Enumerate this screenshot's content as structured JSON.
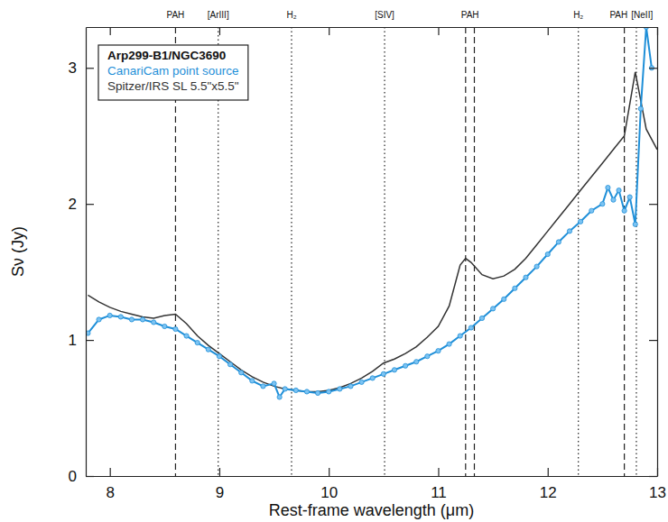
{
  "chart_data": {
    "type": "line",
    "xlabel": "Rest-frame wavelength (μm)",
    "ylabel": "Sν (Jy)",
    "legend_title": "Arp299-B1/NGC3690",
    "legend": "upper left",
    "xlim": [
      7.78,
      13.0
    ],
    "xticks": [
      8,
      9,
      10,
      11,
      12,
      13
    ],
    "ylim": [
      0,
      3.3
    ],
    "yticks": [
      0,
      1,
      2,
      3
    ],
    "annotations": [
      {
        "label": "PAH",
        "x": [
          8.6
        ],
        "line_style": "dashed"
      },
      {
        "label": "[ArIII]",
        "x": [
          8.99
        ],
        "line_style": "dotted"
      },
      {
        "label": "H₂",
        "x": [
          9.66
        ],
        "line_style": "dotted"
      },
      {
        "label": "[SIV]",
        "x": [
          10.51
        ],
        "line_style": "dotted"
      },
      {
        "label": "PAH",
        "x": [
          11.25,
          11.33
        ],
        "line_style": "dashed"
      },
      {
        "label": "H₂",
        "x": [
          12.28
        ],
        "line_style": "dotted"
      },
      {
        "label": "PAH",
        "x": [
          12.7
        ],
        "line_style": "dashed"
      },
      {
        "label": "[NeII]",
        "x": [
          12.81
        ],
        "line_style": "dotted"
      }
    ],
    "series": [
      {
        "name": "CanariCam point source",
        "color": "#1f8fd8",
        "marker": "circle",
        "line_style": "solid",
        "x": [
          7.8,
          7.9,
          8.0,
          8.1,
          8.2,
          8.3,
          8.4,
          8.5,
          8.6,
          8.7,
          8.8,
          8.9,
          9.0,
          9.1,
          9.2,
          9.3,
          9.4,
          9.5,
          9.55,
          9.6,
          9.7,
          9.8,
          9.9,
          10.0,
          10.1,
          10.2,
          10.3,
          10.4,
          10.5,
          10.6,
          10.7,
          10.8,
          10.9,
          11.0,
          11.1,
          11.2,
          11.3,
          11.4,
          11.5,
          11.6,
          11.7,
          11.8,
          11.9,
          12.0,
          12.1,
          12.2,
          12.3,
          12.4,
          12.5,
          12.55,
          12.6,
          12.65,
          12.7,
          12.75,
          12.8,
          12.85,
          12.9,
          12.95
        ],
        "values": [
          1.05,
          1.15,
          1.18,
          1.17,
          1.15,
          1.15,
          1.13,
          1.1,
          1.08,
          1.03,
          0.98,
          0.93,
          0.88,
          0.82,
          0.76,
          0.7,
          0.66,
          0.68,
          0.58,
          0.64,
          0.63,
          0.62,
          0.61,
          0.62,
          0.64,
          0.66,
          0.69,
          0.72,
          0.75,
          0.78,
          0.81,
          0.84,
          0.88,
          0.92,
          0.97,
          1.03,
          1.09,
          1.16,
          1.23,
          1.3,
          1.38,
          1.46,
          1.54,
          1.63,
          1.72,
          1.8,
          1.87,
          1.95,
          2.0,
          2.12,
          2.03,
          2.1,
          1.95,
          2.05,
          1.85,
          2.7,
          3.3,
          3.0
        ]
      },
      {
        "name": "Spitzer/IRS SL 5.5\"x5.5\"",
        "color": "#333333",
        "line_style": "solid",
        "x": [
          7.8,
          7.9,
          8.0,
          8.1,
          8.2,
          8.3,
          8.4,
          8.5,
          8.6,
          8.7,
          8.8,
          8.9,
          9.0,
          9.1,
          9.2,
          9.3,
          9.4,
          9.5,
          9.6,
          9.7,
          9.8,
          9.9,
          10.0,
          10.1,
          10.2,
          10.3,
          10.4,
          10.5,
          10.6,
          10.7,
          10.8,
          10.9,
          11.0,
          11.1,
          11.2,
          11.25,
          11.3,
          11.4,
          11.5,
          11.6,
          11.7,
          11.8,
          11.9,
          12.0,
          12.1,
          12.2,
          12.3,
          12.4,
          12.5,
          12.6,
          12.7,
          12.8,
          12.9,
          13.0
        ],
        "values": [
          1.33,
          1.28,
          1.24,
          1.21,
          1.19,
          1.17,
          1.16,
          1.18,
          1.19,
          1.12,
          1.03,
          0.96,
          0.9,
          0.84,
          0.78,
          0.73,
          0.69,
          0.66,
          0.64,
          0.63,
          0.62,
          0.62,
          0.63,
          0.65,
          0.68,
          0.72,
          0.77,
          0.83,
          0.86,
          0.9,
          0.95,
          1.02,
          1.1,
          1.25,
          1.55,
          1.6,
          1.57,
          1.48,
          1.45,
          1.47,
          1.52,
          1.6,
          1.7,
          1.8,
          1.9,
          2.0,
          2.1,
          2.2,
          2.3,
          2.4,
          2.5,
          2.97,
          2.55,
          2.4
        ]
      }
    ]
  }
}
